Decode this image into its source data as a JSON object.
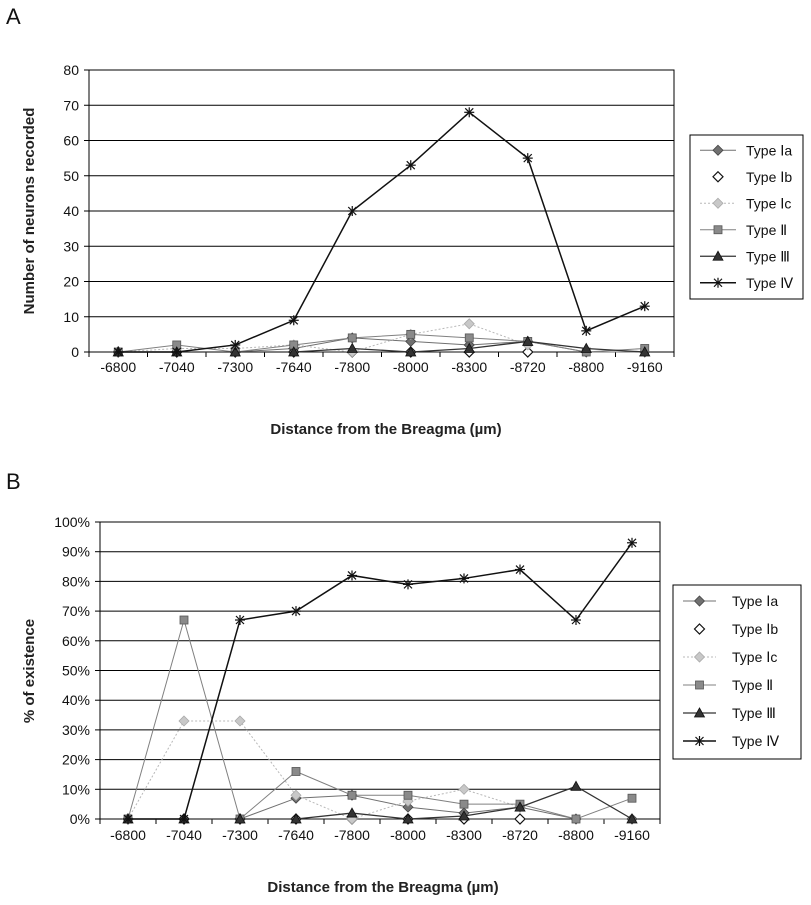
{
  "chart_data": [
    {
      "type": "line",
      "panel": "A",
      "ylabel": "Number of neurons recorded",
      "xlabel": "Distance from the Breagma (µm)",
      "categories": [
        "-6800",
        "-7040",
        "-7300",
        "-7640",
        "-7800",
        "-8000",
        "-8300",
        "-8720",
        "-8800",
        "-9160"
      ],
      "yticks": [
        "0",
        "10",
        "20",
        "30",
        "40",
        "50",
        "60",
        "70",
        "80"
      ],
      "ylim": [
        0,
        80
      ],
      "grid": true,
      "legend_position": "right",
      "series": [
        {
          "name": "Type Ⅰa",
          "marker": "diamond-filled",
          "color": "#707070",
          "values": [
            0,
            0,
            0,
            1,
            4,
            3,
            2,
            3,
            0,
            0
          ]
        },
        {
          "name": "Type Ⅰb",
          "marker": "diamond-open",
          "color": "#111111",
          "values": [
            0,
            0,
            0,
            0,
            0,
            0,
            0,
            0,
            null,
            null
          ]
        },
        {
          "name": "Type Ⅰc",
          "marker": "diamond-light",
          "color": "#b8b8b8",
          "values": [
            0,
            1,
            1,
            2,
            0,
            5,
            8,
            2,
            null,
            null
          ]
        },
        {
          "name": "Type Ⅱ",
          "marker": "square",
          "color": "#808080",
          "values": [
            0,
            2,
            0,
            2,
            4,
            5,
            4,
            3,
            0,
            1
          ]
        },
        {
          "name": "Type Ⅲ",
          "marker": "triangle",
          "color": "#333333",
          "values": [
            0,
            0,
            0,
            0,
            1,
            0,
            1,
            3,
            1,
            0
          ]
        },
        {
          "name": "Type Ⅳ",
          "marker": "star",
          "color": "#111111",
          "values": [
            0,
            0,
            2,
            9,
            40,
            53,
            68,
            55,
            6,
            13
          ]
        }
      ]
    },
    {
      "type": "line",
      "panel": "B",
      "ylabel": "% of existence",
      "xlabel": "Distance from the Breagma (µm)",
      "categories": [
        "-6800",
        "-7040",
        "-7300",
        "-7640",
        "-7800",
        "-8000",
        "-8300",
        "-8720",
        "-8800",
        "-9160"
      ],
      "yticks": [
        "0%",
        "10%",
        "20%",
        "30%",
        "40%",
        "50%",
        "60%",
        "70%",
        "80%",
        "90%",
        "100%"
      ],
      "ylim": [
        0,
        100
      ],
      "grid": true,
      "legend_position": "right",
      "series": [
        {
          "name": "Type Ⅰa",
          "marker": "diamond-filled",
          "color": "#707070",
          "values": [
            0,
            0,
            0,
            7,
            8,
            4,
            2,
            4,
            0,
            0
          ]
        },
        {
          "name": "Type Ⅰb",
          "marker": "diamond-open",
          "color": "#111111",
          "values": [
            0,
            0,
            0,
            0,
            0,
            0,
            0,
            0,
            null,
            null
          ]
        },
        {
          "name": "Type Ⅰc",
          "marker": "diamond-light",
          "color": "#b8b8b8",
          "values": [
            0,
            33,
            33,
            8,
            0,
            6,
            10,
            4,
            null,
            null
          ]
        },
        {
          "name": "Type Ⅱ",
          "marker": "square",
          "color": "#808080",
          "values": [
            0,
            67,
            0,
            16,
            8,
            8,
            5,
            5,
            0,
            7
          ]
        },
        {
          "name": "Type Ⅲ",
          "marker": "triangle",
          "color": "#333333",
          "values": [
            0,
            0,
            0,
            0,
            2,
            0,
            1,
            4,
            11,
            0
          ]
        },
        {
          "name": "Type Ⅳ",
          "marker": "star",
          "color": "#111111",
          "values": [
            0,
            0,
            67,
            70,
            82,
            79,
            81,
            84,
            67,
            93
          ]
        }
      ]
    }
  ]
}
